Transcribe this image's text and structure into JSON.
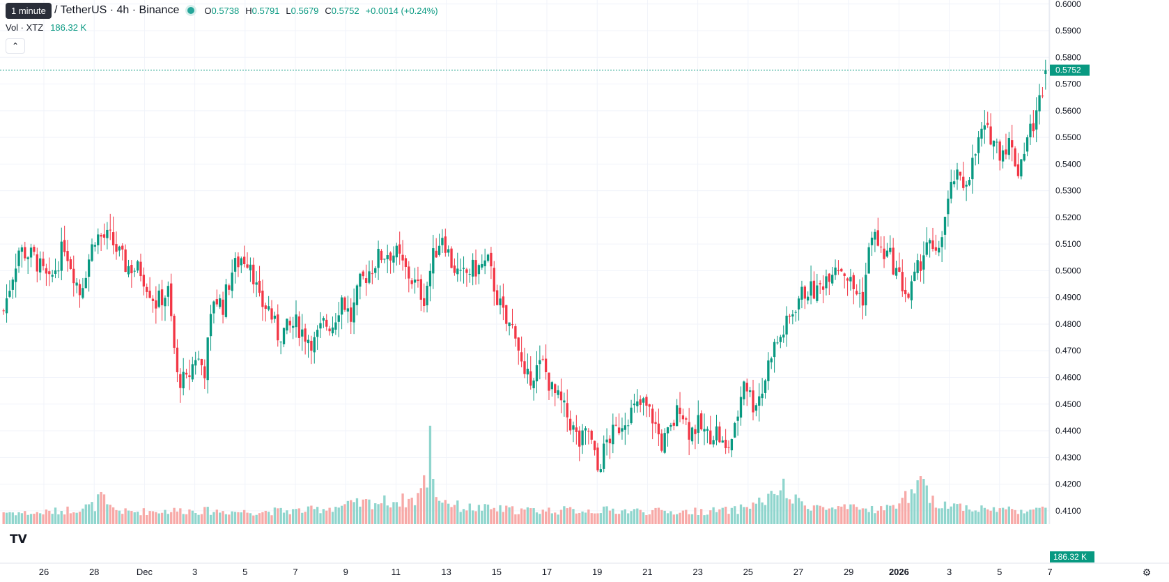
{
  "header": {
    "tooltip": "1 minute",
    "symbol": "/ TetherUS · 4h · Binance",
    "ohlc": {
      "o_label": "O",
      "o": "0.5738",
      "h_label": "H",
      "h": "0.5791",
      "l_label": "L",
      "l": "0.5679",
      "c_label": "C",
      "c": "0.5752",
      "change": "+0.0014 (+0.24%)"
    },
    "volume_label": "Vol · XTZ",
    "volume_value": "186.32 K"
  },
  "price_axis": {
    "ticks": [
      "0.6000",
      "0.5900",
      "0.5800",
      "0.5700",
      "0.5600",
      "0.5500",
      "0.5400",
      "0.5300",
      "0.5200",
      "0.5100",
      "0.5000",
      "0.4900",
      "0.4800",
      "0.4700",
      "0.4600",
      "0.4500",
      "0.4400",
      "0.4300",
      "0.4200",
      "0.4100"
    ],
    "last_price": "0.5752",
    "volume_badge": "186.32 K"
  },
  "time_axis": {
    "labels": [
      "26",
      "28",
      "Dec",
      "3",
      "5",
      "7",
      "9",
      "11",
      "13",
      "15",
      "17",
      "19",
      "21",
      "23",
      "25",
      "27",
      "29",
      "2026",
      "3",
      "5",
      "7"
    ]
  },
  "colors": {
    "up": "#089981",
    "down": "#f23645",
    "up_vol": "#8fd5cd",
    "down_vol": "#f7a9a7",
    "grid": "#f0f3fa"
  },
  "chart_data": {
    "type": "candlestick",
    "title": "/ TetherUS · 4h · Binance",
    "xlabel": "",
    "ylabel": "",
    "ylim": [
      0.405,
      0.6015
    ],
    "grid": true,
    "close_path": [
      [
        0,
        0.485
      ],
      [
        5,
        0.508
      ],
      [
        10,
        0.505
      ],
      [
        15,
        0.495
      ],
      [
        20,
        0.51
      ],
      [
        25,
        0.492
      ],
      [
        30,
        0.513
      ],
      [
        35,
        0.512
      ],
      [
        40,
        0.502
      ],
      [
        45,
        0.5
      ],
      [
        50,
        0.488
      ],
      [
        54,
        0.492
      ],
      [
        57,
        0.46
      ],
      [
        60,
        0.458
      ],
      [
        63,
        0.468
      ],
      [
        66,
        0.463
      ],
      [
        69,
        0.49
      ],
      [
        72,
        0.487
      ],
      [
        75,
        0.5
      ],
      [
        78,
        0.505
      ],
      [
        81,
        0.504
      ],
      [
        84,
        0.488
      ],
      [
        87,
        0.486
      ],
      [
        90,
        0.476
      ],
      [
        93,
        0.478
      ],
      [
        96,
        0.48
      ],
      [
        99,
        0.476
      ],
      [
        102,
        0.473
      ],
      [
        105,
        0.48
      ],
      [
        108,
        0.48
      ],
      [
        111,
        0.49
      ],
      [
        114,
        0.482
      ],
      [
        117,
        0.495
      ],
      [
        120,
        0.5
      ],
      [
        123,
        0.505
      ],
      [
        126,
        0.507
      ],
      [
        129,
        0.506
      ],
      [
        132,
        0.5
      ],
      [
        135,
        0.495
      ],
      [
        138,
        0.49
      ],
      [
        141,
        0.505
      ],
      [
        144,
        0.514
      ],
      [
        147,
        0.503
      ],
      [
        150,
        0.497
      ],
      [
        153,
        0.5
      ],
      [
        156,
        0.501
      ],
      [
        159,
        0.503
      ],
      [
        162,
        0.49
      ],
      [
        165,
        0.48
      ],
      [
        168,
        0.478
      ],
      [
        171,
        0.458
      ],
      [
        174,
        0.462
      ],
      [
        177,
        0.465
      ],
      [
        180,
        0.455
      ],
      [
        183,
        0.45
      ],
      [
        186,
        0.443
      ],
      [
        189,
        0.435
      ],
      [
        192,
        0.44
      ],
      [
        195,
        0.425
      ],
      [
        198,
        0.436
      ],
      [
        201,
        0.44
      ],
      [
        204,
        0.445
      ],
      [
        207,
        0.448
      ],
      [
        210,
        0.45
      ],
      [
        213,
        0.445
      ],
      [
        216,
        0.435
      ],
      [
        219,
        0.44
      ],
      [
        222,
        0.45
      ],
      [
        225,
        0.44
      ],
      [
        228,
        0.442
      ],
      [
        231,
        0.438
      ],
      [
        234,
        0.44
      ],
      [
        237,
        0.432
      ],
      [
        240,
        0.44
      ],
      [
        243,
        0.46
      ],
      [
        246,
        0.45
      ],
      [
        249,
        0.455
      ],
      [
        252,
        0.47
      ],
      [
        255,
        0.475
      ],
      [
        258,
        0.482
      ],
      [
        261,
        0.49
      ],
      [
        264,
        0.493
      ],
      [
        267,
        0.492
      ],
      [
        270,
        0.498
      ],
      [
        273,
        0.503
      ],
      [
        276,
        0.5
      ],
      [
        279,
        0.493
      ],
      [
        282,
        0.49
      ],
      [
        285,
        0.515
      ],
      [
        288,
        0.507
      ],
      [
        291,
        0.505
      ],
      [
        294,
        0.497
      ],
      [
        297,
        0.49
      ],
      [
        300,
        0.5
      ],
      [
        303,
        0.511
      ],
      [
        306,
        0.504
      ],
      [
        309,
        0.52
      ],
      [
        312,
        0.535
      ],
      [
        315,
        0.532
      ],
      [
        318,
        0.54
      ],
      [
        321,
        0.552
      ],
      [
        324,
        0.551
      ],
      [
        327,
        0.545
      ],
      [
        330,
        0.548
      ],
      [
        333,
        0.538
      ],
      [
        336,
        0.55
      ],
      [
        339,
        0.558
      ],
      [
        342,
        0.575
      ]
    ],
    "volume_path": [
      [
        0,
        40
      ],
      [
        10,
        35
      ],
      [
        20,
        45
      ],
      [
        30,
        60
      ],
      [
        32,
        95
      ],
      [
        34,
        55
      ],
      [
        40,
        40
      ],
      [
        60,
        45
      ],
      [
        80,
        40
      ],
      [
        100,
        45
      ],
      [
        120,
        70
      ],
      [
        135,
        80
      ],
      [
        139,
        150
      ],
      [
        140,
        280
      ],
      [
        142,
        90
      ],
      [
        150,
        55
      ],
      [
        170,
        45
      ],
      [
        200,
        45
      ],
      [
        220,
        40
      ],
      [
        240,
        45
      ],
      [
        253,
        90
      ],
      [
        255,
        130
      ],
      [
        258,
        80
      ],
      [
        262,
        70
      ],
      [
        270,
        50
      ],
      [
        290,
        50
      ],
      [
        298,
        100
      ],
      [
        302,
        130
      ],
      [
        304,
        75
      ],
      [
        320,
        50
      ],
      [
        342,
        45
      ]
    ],
    "last": {
      "open": 0.5738,
      "high": 0.5791,
      "low": 0.5679,
      "close": 0.5752
    }
  }
}
